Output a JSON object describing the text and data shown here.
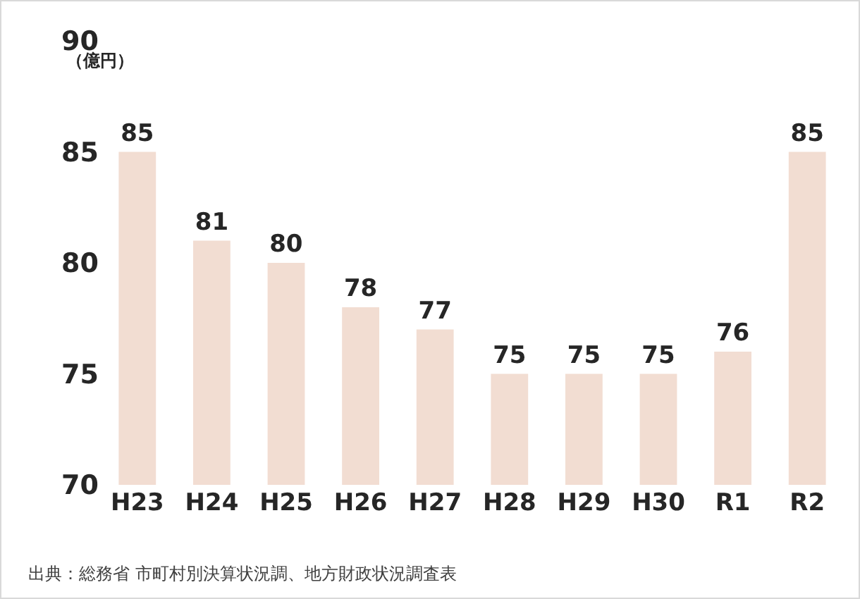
{
  "chart_data": {
    "type": "bar",
    "ylabel": "（億円）",
    "categories": [
      "H23",
      "H24",
      "H25",
      "H26",
      "H27",
      "H28",
      "H29",
      "H30",
      "R1",
      "R2"
    ],
    "values": [
      85,
      81,
      80,
      78,
      77,
      75,
      75,
      75,
      76,
      85
    ],
    "color": "#f2ddd2",
    "ylim": [
      70,
      90
    ],
    "yticks": [
      70,
      75,
      80,
      85,
      90
    ],
    "grid": false,
    "data_labels": true,
    "annotations": [
      "出典：総務省 市町村別決算状況調、地方財政状況調査表"
    ]
  }
}
